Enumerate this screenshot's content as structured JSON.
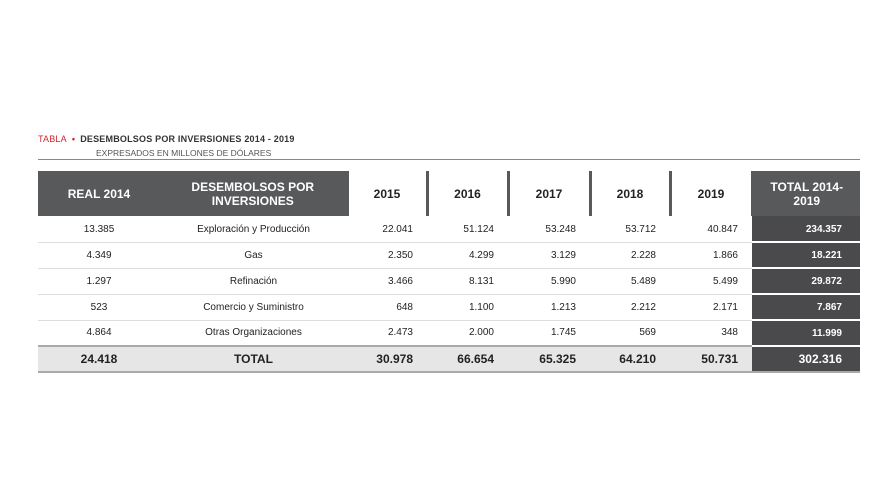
{
  "header": {
    "label": "TABLA",
    "title": "DESEMBOLSOS POR INVERSIONES 2014 - 2019",
    "subtitle": "EXPRESADOS EN MILLONES DE DÓLARES"
  },
  "table": {
    "columns": [
      "REAL 2014",
      "DESEMBOLSOS POR INVERSIONES",
      "2015",
      "2016",
      "2017",
      "2018",
      "2019",
      "TOTAL 2014-2019"
    ],
    "rows": [
      [
        "13.385",
        "Exploración y Producción",
        "22.041",
        "51.124",
        "53.248",
        "53.712",
        "40.847",
        "234.357"
      ],
      [
        "4.349",
        "Gas",
        "2.350",
        "4.299",
        "3.129",
        "2.228",
        "1.866",
        "18.221"
      ],
      [
        "1.297",
        "Refinación",
        "3.466",
        "8.131",
        "5.990",
        "5.489",
        "5.499",
        "29.872"
      ],
      [
        "523",
        "Comercio y Suministro",
        "648",
        "1.100",
        "1.213",
        "2.212",
        "2.171",
        "7.867"
      ],
      [
        "4.864",
        "Otras Organizaciones",
        "2.473",
        "2.000",
        "1.745",
        "569",
        "348",
        "11.999"
      ]
    ],
    "total": [
      "24.418",
      "TOTAL",
      "30.978",
      "66.654",
      "65.325",
      "64.210",
      "50.731",
      "302.316"
    ]
  }
}
